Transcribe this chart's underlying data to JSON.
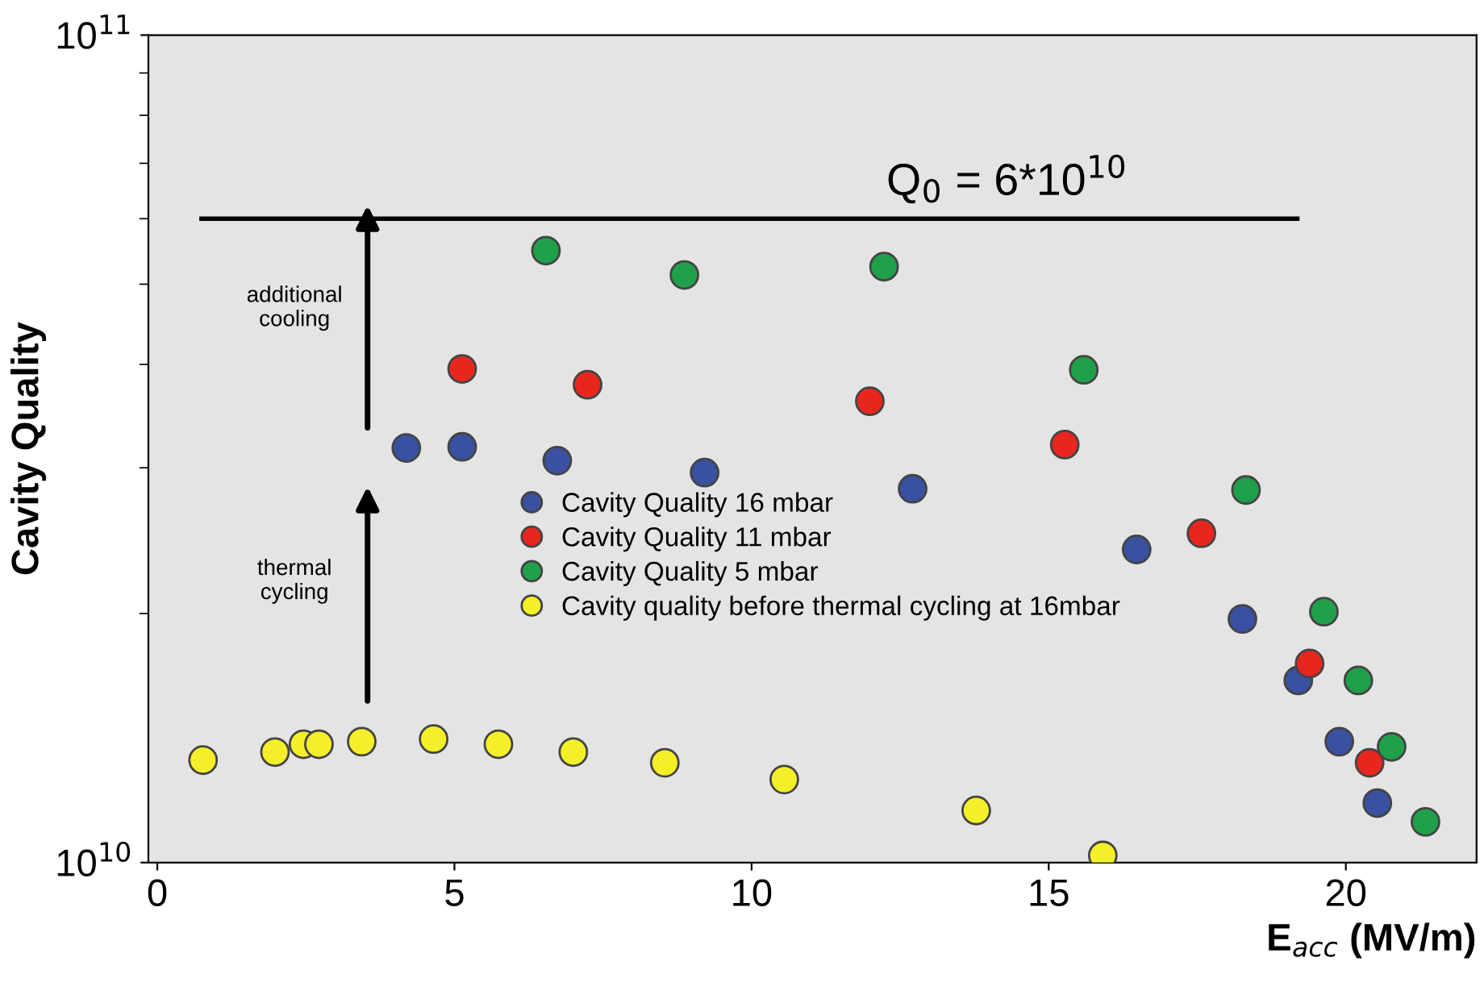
{
  "chart_data": {
    "type": "scatter",
    "xlabel": "E$_{acc}$ (MV/m)",
    "ylabel": "Cavity Quality",
    "log": "y",
    "xlim": [
      -0.15,
      22.2
    ],
    "ylim": [
      10000000000.0,
      100000000000.0
    ],
    "xticks": [
      0,
      5,
      10,
      15,
      20
    ],
    "yticks": [
      {
        "value": 10000000000.0,
        "label": "10$^{10}$"
      },
      {
        "value": 100000000000.0,
        "label": "10$^{11}$"
      }
    ],
    "grid": false,
    "legend": "center",
    "marker": "circle",
    "series": [
      {
        "name": "Cavity Quality 16 mbar",
        "color": "#3a50a0",
        "x": [
          4.19,
          5.13,
          6.73,
          9.21,
          12.71,
          16.48,
          18.26,
          19.2,
          19.89,
          20.53
        ],
        "values": [
          31700000000.0,
          31800000000.0,
          30600000000.0,
          29600000000.0,
          28300000000.0,
          23900000000.0,
          19700000000.0,
          16600000000.0,
          14000000000.0,
          11800000000.0
        ]
      },
      {
        "name": "Cavity Quality 11 mbar",
        "color": "#e8261e",
        "x": [
          5.13,
          7.24,
          11.99,
          15.27,
          17.57,
          19.39,
          20.4
        ],
        "values": [
          39500000000.0,
          37800000000.0,
          36100000000.0,
          32000000000.0,
          25000000000.0,
          17400000000.0,
          13200000000.0
        ]
      },
      {
        "name": "Cavity Quality 5 mbar",
        "color": "#1fa04a",
        "x": [
          6.54,
          8.87,
          12.23,
          15.59,
          18.32,
          19.63,
          20.21,
          20.77,
          21.34
        ],
        "values": [
          54900000000.0,
          51300000000.0,
          52500000000.0,
          39400000000.0,
          28200000000.0,
          20100000000.0,
          16600000000.0,
          13800000000.0,
          11200000000.0
        ]
      },
      {
        "name": "Cavity quality before thermal cycling at 16mbar",
        "color": "#f5ef2a",
        "x": [
          0.77,
          1.98,
          2.46,
          2.72,
          3.44,
          4.65,
          5.74,
          7.0,
          8.54,
          10.55,
          13.78,
          15.91
        ],
        "values": [
          13300000000.0,
          13600000000.0,
          13900000000.0,
          13900000000.0,
          14000000000.0,
          14100000000.0,
          13900000000.0,
          13600000000.0,
          13200000000.0,
          12600000000.0,
          11560000000.0,
          10200000000.0
        ]
      }
    ],
    "ref_lines": [
      {
        "axis": "y",
        "value": 60000000000.0,
        "color": "#000000"
      }
    ],
    "annotations": [
      "additional\ncooling",
      "thermal\ncycling",
      {
        "text": "Q$_{0}$ = 6*10$^{10}$",
        "x": 14.3,
        "y": 60000000000.0
      }
    ]
  }
}
